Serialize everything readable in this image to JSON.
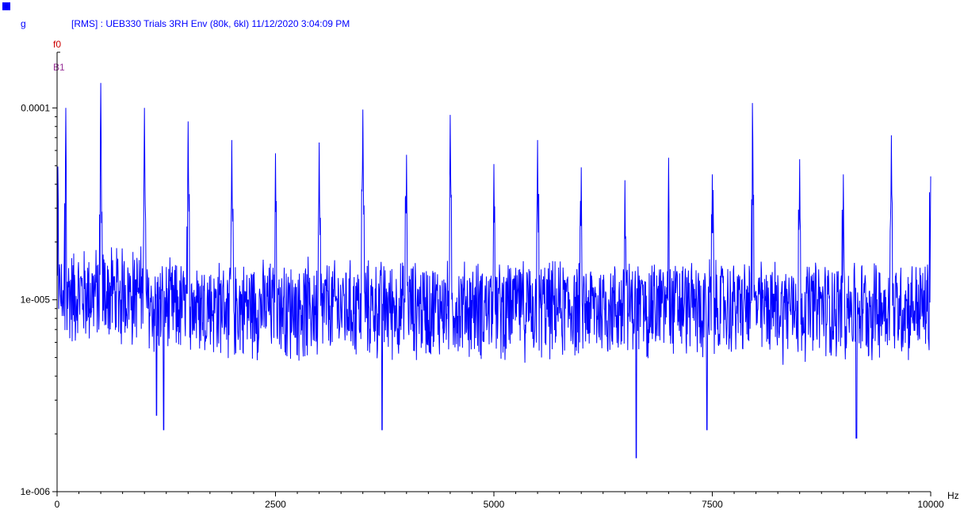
{
  "header": {
    "unit": "g",
    "title": "[RMS] : UEB330 Trials 3RH Env (80k, 6kl) 11/12/2020 3:04:09 PM",
    "marker_f0": "f0",
    "marker_b1": "B1"
  },
  "colors": {
    "trace": "#0000ff",
    "axis": "#000000",
    "title": "#0000ff",
    "marker_f0": "#cc0000",
    "marker_b1": "#993399"
  },
  "chart_data": {
    "type": "line",
    "title": "[RMS] : UEB330 Trials 3RH Env (80k, 6kl) 11/12/2020 3:04:09 PM",
    "xlabel": "Hz",
    "ylabel": "g",
    "xlim": [
      0,
      10000
    ],
    "ylim": [
      1e-06,
      0.000195
    ],
    "yscale": "log",
    "grid": false,
    "legend": "none",
    "x_ticks": [
      {
        "value": 0,
        "label": "0"
      },
      {
        "value": 2500,
        "label": "2500"
      },
      {
        "value": 5000,
        "label": "5000"
      },
      {
        "value": 7500,
        "label": "7500"
      },
      {
        "value": 10000,
        "label": "10000"
      }
    ],
    "y_ticks": [
      {
        "value": 0.0001,
        "label": "0.0001"
      },
      {
        "value": 1e-05,
        "label": "1e-005"
      },
      {
        "value": 1e-06,
        "label": "1e-006"
      }
    ],
    "series": [
      {
        "baseline": 9.5e-06,
        "noise_low": 4.5e-06,
        "noise_high": 1.7e-05,
        "peaks": [
          {
            "x": 10,
            "y": 5.5e-05
          },
          {
            "x": 100,
            "y": 0.0001
          },
          {
            "x": 500,
            "y": 0.000135
          },
          {
            "x": 1000,
            "y": 0.0001
          },
          {
            "x": 1500,
            "y": 8.5e-05
          },
          {
            "x": 2000,
            "y": 6.8e-05
          },
          {
            "x": 2500,
            "y": 5.8e-05
          },
          {
            "x": 3000,
            "y": 6.6e-05
          },
          {
            "x": 3500,
            "y": 9.8e-05
          },
          {
            "x": 4000,
            "y": 5.7e-05
          },
          {
            "x": 4500,
            "y": 9.2e-05
          },
          {
            "x": 5000,
            "y": 5.1e-05
          },
          {
            "x": 5500,
            "y": 6.8e-05
          },
          {
            "x": 6000,
            "y": 4.9e-05
          },
          {
            "x": 6500,
            "y": 4.2e-05
          },
          {
            "x": 7000,
            "y": 5.5e-05
          },
          {
            "x": 7500,
            "y": 4.5e-05
          },
          {
            "x": 7960,
            "y": 0.000118
          },
          {
            "x": 8500,
            "y": 5.4e-05
          },
          {
            "x": 9000,
            "y": 4.5e-05
          },
          {
            "x": 9550,
            "y": 7.2e-05
          },
          {
            "x": 10000,
            "y": 4.4e-05
          }
        ],
        "troughs": [
          {
            "x": 1140,
            "y": 2.5e-06
          },
          {
            "x": 1220,
            "y": 2.1e-06
          },
          {
            "x": 3720,
            "y": 2.1e-06
          },
          {
            "x": 6630,
            "y": 1.5e-06
          },
          {
            "x": 7440,
            "y": 2.1e-06
          },
          {
            "x": 9150,
            "y": 1.9e-06
          }
        ]
      }
    ]
  }
}
